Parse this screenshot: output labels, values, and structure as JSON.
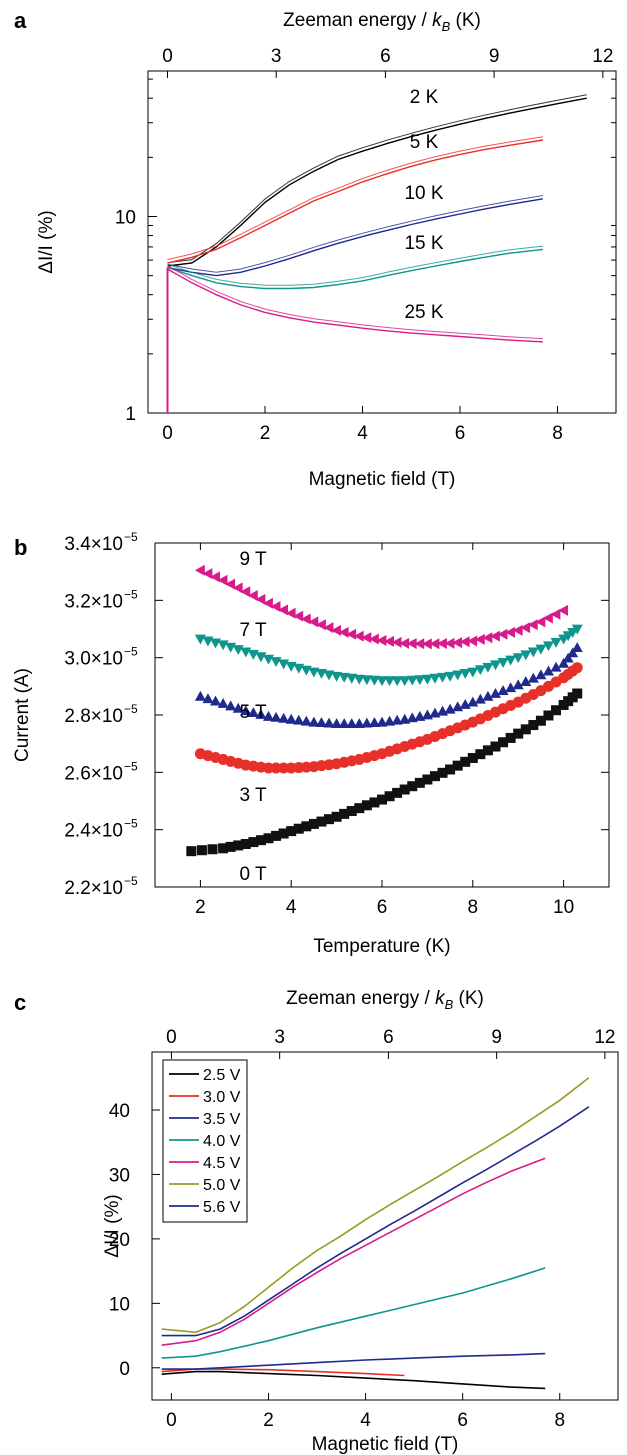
{
  "chart_data": [
    {
      "panel": "a",
      "type": "line",
      "title": "",
      "xlabel": "Magnetic field (T)",
      "ylabel": "ΔI/I (%)",
      "top_axis_label": "Zeeman energy / k_B (K)",
      "top_axis_label_parts": {
        "pre": "Zeeman energy / ",
        "k": "k",
        "sub": "B",
        "post": " (K)"
      },
      "xlim": [
        -0.4,
        9.2
      ],
      "ylim": [
        1,
        55
      ],
      "yscale": "log",
      "xticks": [
        0,
        2,
        4,
        6,
        8
      ],
      "yticks": [
        1,
        10
      ],
      "top_ticks": [
        0,
        3,
        6,
        9,
        12
      ],
      "top_ticks_field_T": [
        0,
        2.23,
        4.47,
        6.7,
        8.93
      ],
      "legend": "none",
      "annotations": [
        "2 K",
        "5 K",
        "10 K",
        "15 K",
        "25 K"
      ],
      "series": [
        {
          "name": "2 K",
          "color": "#000000",
          "x": [
            0,
            0.5,
            1.0,
            1.5,
            2.0,
            2.5,
            3.0,
            3.5,
            4.0,
            4.5,
            5.0,
            5.5,
            6.0,
            6.5,
            7.0,
            7.5,
            8.0,
            8.6
          ],
          "y": [
            5.6,
            5.8,
            7.0,
            9.0,
            11.8,
            14.5,
            17.0,
            19.5,
            21.5,
            23.5,
            25.5,
            27.5,
            29.5,
            31.5,
            33.5,
            35.5,
            37.5,
            40.0
          ]
        },
        {
          "name": "5 K",
          "color": "#e8302a",
          "x": [
            0,
            0.5,
            1.0,
            1.5,
            2.0,
            2.5,
            3.0,
            3.5,
            4.0,
            4.5,
            5.0,
            5.5,
            6.0,
            6.5,
            7.0,
            7.7
          ],
          "y": [
            5.8,
            6.2,
            6.8,
            7.8,
            9.0,
            10.4,
            12.0,
            13.4,
            15.0,
            16.5,
            18.0,
            19.4,
            20.7,
            21.9,
            23.0,
            24.5
          ]
        },
        {
          "name": "10 K",
          "color": "#1f2a8c",
          "x": [
            0,
            0.5,
            1.0,
            1.5,
            2.0,
            2.5,
            3.0,
            3.5,
            4.0,
            4.5,
            5.0,
            5.5,
            6.0,
            6.5,
            7.0,
            7.7
          ],
          "y": [
            5.5,
            5.2,
            5.0,
            5.2,
            5.6,
            6.1,
            6.7,
            7.3,
            7.9,
            8.5,
            9.1,
            9.7,
            10.3,
            10.9,
            11.5,
            12.3
          ]
        },
        {
          "name": "15 K",
          "color": "#0f968c",
          "x": [
            0,
            0.5,
            1.0,
            1.5,
            2.0,
            2.5,
            3.0,
            3.5,
            4.0,
            4.5,
            5.0,
            5.5,
            6.0,
            6.5,
            7.0,
            7.7
          ],
          "y": [
            5.5,
            5.0,
            4.6,
            4.4,
            4.3,
            4.3,
            4.35,
            4.5,
            4.7,
            5.0,
            5.3,
            5.6,
            5.9,
            6.2,
            6.5,
            6.8
          ]
        },
        {
          "name": "25 K",
          "color": "#d81b8c",
          "x": [
            0,
            0.5,
            1.0,
            1.5,
            2.0,
            2.5,
            3.0,
            3.5,
            4.0,
            4.5,
            5.0,
            5.5,
            6.0,
            6.5,
            7.0,
            7.7
          ],
          "y": [
            5.4,
            4.6,
            4.0,
            3.55,
            3.25,
            3.05,
            2.9,
            2.8,
            2.7,
            2.62,
            2.55,
            2.5,
            2.45,
            2.4,
            2.35,
            2.3
          ]
        }
      ]
    },
    {
      "panel": "b",
      "type": "scatter",
      "title": "",
      "xlabel": "Temperature (K)",
      "ylabel": "Current (A)",
      "xlim": [
        1.0,
        11.0
      ],
      "ylim": [
        2.2e-05,
        3.4e-05
      ],
      "xticks": [
        2,
        4,
        6,
        8,
        10
      ],
      "yticks": [
        2.2e-05,
        2.4e-05,
        2.6e-05,
        2.8e-05,
        3e-05,
        3.2e-05,
        3.4e-05
      ],
      "ytick_labels": [
        {
          "mant": "2.2×10",
          "exp": "−5"
        },
        {
          "mant": "2.4×10",
          "exp": "−5"
        },
        {
          "mant": "2.6×10",
          "exp": "−5"
        },
        {
          "mant": "2.8×10",
          "exp": "−5"
        },
        {
          "mant": "3.0×10",
          "exp": "−5"
        },
        {
          "mant": "3.2×10",
          "exp": "−5"
        },
        {
          "mant": "3.4×10",
          "exp": "−5"
        }
      ],
      "legend": "none",
      "annotations": [
        "9 T",
        "7 T",
        "5 T",
        "3 T",
        "0 T"
      ],
      "series": [
        {
          "name": "0 T",
          "color": "#111111",
          "marker": "square",
          "x": [
            1.8,
            2.5,
            3.0,
            3.5,
            4.0,
            4.5,
            5.0,
            5.5,
            6.0,
            6.5,
            7.0,
            7.5,
            8.0,
            8.5,
            9.0,
            9.5,
            10.0,
            10.3
          ],
          "y": [
            2.325e-05,
            2.335e-05,
            2.35e-05,
            2.37e-05,
            2.395e-05,
            2.42e-05,
            2.445e-05,
            2.475e-05,
            2.505e-05,
            2.54e-05,
            2.575e-05,
            2.61e-05,
            2.65e-05,
            2.69e-05,
            2.735e-05,
            2.78e-05,
            2.835e-05,
            2.875e-05
          ]
        },
        {
          "name": "3 T",
          "color": "#e8302a",
          "marker": "circle",
          "x": [
            2.0,
            2.5,
            3.0,
            3.5,
            4.0,
            4.5,
            5.0,
            5.5,
            6.0,
            6.5,
            7.0,
            7.5,
            8.0,
            8.5,
            9.0,
            9.5,
            10.0,
            10.3
          ],
          "y": [
            2.665e-05,
            2.645e-05,
            2.625e-05,
            2.615e-05,
            2.615e-05,
            2.62e-05,
            2.63e-05,
            2.645e-05,
            2.665e-05,
            2.69e-05,
            2.715e-05,
            2.745e-05,
            2.775e-05,
            2.81e-05,
            2.845e-05,
            2.885e-05,
            2.93e-05,
            2.965e-05
          ]
        },
        {
          "name": "5 T",
          "color": "#1f2a8c",
          "marker": "triangle-up",
          "x": [
            2.0,
            2.5,
            3.0,
            3.5,
            4.0,
            4.5,
            5.0,
            5.5,
            6.0,
            6.5,
            7.0,
            7.5,
            8.0,
            8.5,
            9.0,
            9.5,
            10.0,
            10.3
          ],
          "y": [
            2.865e-05,
            2.84e-05,
            2.815e-05,
            2.795e-05,
            2.785e-05,
            2.775e-05,
            2.77e-05,
            2.77e-05,
            2.775e-05,
            2.785e-05,
            2.8e-05,
            2.82e-05,
            2.845e-05,
            2.875e-05,
            2.905e-05,
            2.94e-05,
            2.98e-05,
            3.035e-05
          ]
        },
        {
          "name": "7 T",
          "color": "#0f968c",
          "marker": "triangle-down",
          "x": [
            2.0,
            2.5,
            3.0,
            3.5,
            4.0,
            4.5,
            5.0,
            5.5,
            6.0,
            6.5,
            7.0,
            7.5,
            8.0,
            8.5,
            9.0,
            9.5,
            10.0,
            10.3
          ],
          "y": [
            3.065e-05,
            3.045e-05,
            3.02e-05,
            2.995e-05,
            2.97e-05,
            2.95e-05,
            2.935e-05,
            2.925e-05,
            2.92e-05,
            2.92e-05,
            2.925e-05,
            2.935e-05,
            2.95e-05,
            2.975e-05,
            3e-05,
            3.03e-05,
            3.065e-05,
            3.1e-05
          ]
        },
        {
          "name": "9 T",
          "color": "#d81b8c",
          "marker": "triangle-left",
          "x": [
            2.0,
            2.5,
            3.0,
            3.5,
            4.0,
            4.5,
            5.0,
            5.5,
            6.0,
            6.5,
            7.0,
            7.5,
            8.0,
            8.5,
            9.0,
            9.5,
            10.0
          ],
          "y": [
            3.305e-05,
            3.27e-05,
            3.23e-05,
            3.19e-05,
            3.155e-05,
            3.125e-05,
            3.095e-05,
            3.075e-05,
            3.06e-05,
            3.05e-05,
            3.048e-05,
            3.05e-05,
            3.058e-05,
            3.075e-05,
            3.095e-05,
            3.125e-05,
            3.165e-05
          ]
        }
      ]
    },
    {
      "panel": "c",
      "type": "line",
      "title": "",
      "xlabel": "Magnetic field (T)",
      "ylabel": "ΔI/I (%)",
      "top_axis_label": "Zeeman energy / k_B (K)",
      "top_axis_label_parts": {
        "pre": "Zeeman energy / ",
        "k": "k",
        "sub": "B",
        "post": " (K)"
      },
      "xlim": [
        -0.4,
        9.2
      ],
      "ylim": [
        -5,
        49
      ],
      "xticks": [
        0,
        2,
        4,
        6,
        8
      ],
      "yticks": [
        0,
        10,
        20,
        30,
        40
      ],
      "top_ticks": [
        0,
        3,
        6,
        9,
        12
      ],
      "top_ticks_field_T": [
        0,
        2.23,
        4.47,
        6.7,
        8.93
      ],
      "legend": "top-left",
      "series": [
        {
          "name": "2.5 V",
          "color": "#000000",
          "x": [
            -0.2,
            0.5,
            1.0,
            2.0,
            3.0,
            4.0,
            5.0,
            6.0,
            7.0,
            7.7
          ],
          "y": [
            -1.0,
            -0.6,
            -0.6,
            -0.9,
            -1.2,
            -1.6,
            -2.0,
            -2.5,
            -3.0,
            -3.2
          ]
        },
        {
          "name": "3.0 V",
          "color": "#e8302a",
          "x": [
            -0.2,
            0.5,
            1.0,
            2.0,
            3.0,
            4.0,
            4.8
          ],
          "y": [
            -0.6,
            -0.2,
            -0.2,
            -0.3,
            -0.6,
            -0.9,
            -1.2
          ]
        },
        {
          "name": "3.5 V",
          "color": "#1f2a8c",
          "x": [
            -0.2,
            0.5,
            1.0,
            2.0,
            3.0,
            4.0,
            5.0,
            6.0,
            7.0,
            7.7
          ],
          "y": [
            -0.2,
            -0.2,
            0.0,
            0.4,
            0.8,
            1.2,
            1.5,
            1.8,
            2.0,
            2.2
          ]
        },
        {
          "name": "4.0 V",
          "color": "#0f968c",
          "x": [
            -0.2,
            0.5,
            1.0,
            2.0,
            3.0,
            4.0,
            5.0,
            6.0,
            7.0,
            7.7
          ],
          "y": [
            1.5,
            1.8,
            2.5,
            4.2,
            6.2,
            8.0,
            9.8,
            11.6,
            13.8,
            15.5
          ]
        },
        {
          "name": "4.5 V",
          "color": "#d81b8c",
          "x": [
            -0.2,
            0.5,
            1.0,
            1.5,
            2.0,
            2.5,
            3.0,
            3.5,
            4.0,
            4.5,
            5.0,
            5.5,
            6.0,
            6.5,
            7.0,
            7.7
          ],
          "y": [
            3.5,
            4.2,
            5.5,
            7.5,
            10.0,
            12.5,
            14.8,
            17.0,
            19.0,
            21.0,
            23.0,
            25.0,
            27.0,
            28.8,
            30.5,
            32.5
          ]
        },
        {
          "name": "5.0 V",
          "color": "#9a9a22",
          "x": [
            -0.2,
            0.5,
            1.0,
            1.5,
            2.0,
            2.5,
            3.0,
            3.5,
            4.0,
            4.5,
            5.0,
            5.5,
            6.0,
            6.5,
            7.0,
            7.5,
            8.0,
            8.6
          ],
          "y": [
            6.0,
            5.5,
            7.0,
            9.5,
            12.5,
            15.5,
            18.2,
            20.5,
            23.0,
            25.3,
            27.5,
            29.7,
            32.0,
            34.2,
            36.5,
            39.0,
            41.5,
            45.0
          ]
        },
        {
          "name": "5.6 V",
          "color": "#1f2a8c",
          "x": [
            -0.2,
            0.5,
            1.0,
            1.5,
            2.0,
            2.5,
            3.0,
            3.5,
            4.0,
            4.5,
            5.0,
            5.5,
            6.0,
            6.5,
            7.0,
            7.5,
            8.0,
            8.6
          ],
          "y": [
            5.0,
            5.0,
            6.0,
            8.0,
            10.5,
            13.0,
            15.5,
            17.8,
            20.0,
            22.2,
            24.3,
            26.5,
            28.7,
            30.8,
            33.0,
            35.2,
            37.5,
            40.5
          ]
        }
      ]
    }
  ]
}
